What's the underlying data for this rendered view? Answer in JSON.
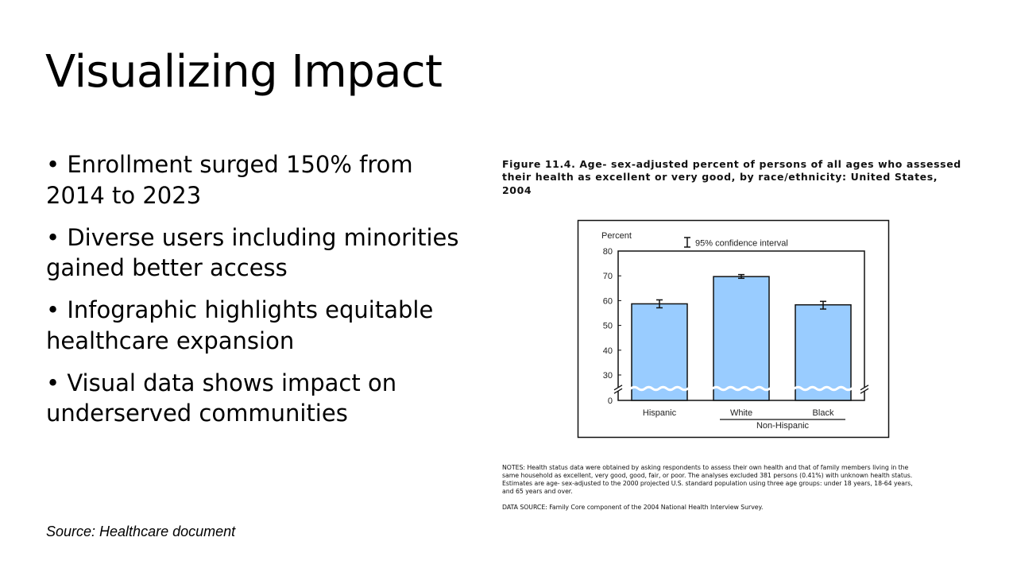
{
  "slide": {
    "title": "Visualizing Impact",
    "bullet_glyph": "•",
    "bullets": [
      "Enrollment surged 150% from 2014 to 2023",
      "Diverse users including minorities gained better access",
      "Infographic highlights equitable healthcare expansion",
      "Visual data shows impact on underserved communities"
    ],
    "source": "Source: Healthcare document"
  },
  "figure": {
    "caption_lines": [
      "Figure 11.4. Age- sex-adjusted percent of persons of all ages who assessed",
      "their health as excellent or very good, by race/ethnicity: United States,",
      "2004"
    ],
    "notes_lines": [
      "NOTES: Health status data were obtained by asking respondents to assess their own health and that of family members living in the",
      "same household as excellent, very good, good, fair, or poor. The analyses excluded 381 persons (0.41%) with unknown health status.",
      "Estimates are age- sex-adjusted to the 2000 projected U.S. standard population using three age groups: under 18 years, 18-64 years,",
      "and 65 years and over."
    ],
    "data_source": "DATA SOURCE: Family Core component of the 2004 National Health Interview Survey."
  },
  "chart_data": {
    "type": "bar",
    "title": "Figure 11.4. Age- sex-adjusted percent of persons of all ages who assessed their health as excellent or very good, by race/ethnicity: United States, 2004",
    "categories": [
      "Hispanic",
      "White",
      "Black"
    ],
    "category_group": {
      "label": "Non-Hispanic",
      "members": [
        "White",
        "Black"
      ]
    },
    "values": [
      58.7,
      69.7,
      58.3
    ],
    "ci_95": [
      [
        57.1,
        60.3
      ],
      [
        69.0,
        70.5
      ],
      [
        56.6,
        59.7
      ]
    ],
    "xlabel": "",
    "ylabel": "Percent",
    "yticks": [
      0,
      30,
      40,
      50,
      60,
      70,
      80
    ],
    "ylim": [
      0,
      80
    ],
    "axis_break": [
      0,
      30
    ],
    "legend": "95% confidence interval",
    "legend_symbol": "error-bar",
    "legend_position": "top",
    "grid": false,
    "colors": {
      "bar": "#99ccff",
      "outline": "#111111",
      "break": "#ffffff"
    }
  }
}
